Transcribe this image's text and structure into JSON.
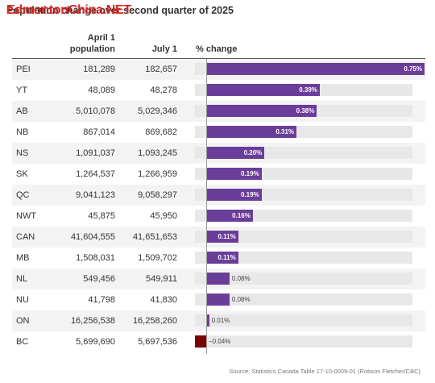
{
  "header": {
    "title": "Population change over second quarter of 2025",
    "watermark": "EdmontonChina.NET"
  },
  "columns": {
    "april": "April 1\npopulation",
    "july": "July 1",
    "pct": "% change"
  },
  "colors": {
    "positive": "#6a3d9a",
    "negative": "#7a0000",
    "label_inside": "#ffffff",
    "label_outside": "#444444"
  },
  "chart_data": {
    "type": "table",
    "title": "Population change over second quarter of 2025",
    "columns": [
      "",
      "April 1 population",
      "July 1",
      "% change"
    ],
    "rows": [
      {
        "prov": "PEI",
        "apr": "181,289",
        "jul": "182,657",
        "pct": 0.75,
        "label": "0.75%"
      },
      {
        "prov": "YT",
        "apr": "48,089",
        "jul": "48,278",
        "pct": 0.39,
        "label": "0.39%"
      },
      {
        "prov": "AB",
        "apr": "5,010,078",
        "jul": "5,029,346",
        "pct": 0.38,
        "label": "0.38%"
      },
      {
        "prov": "NB",
        "apr": "867,014",
        "jul": "869,682",
        "pct": 0.31,
        "label": "0.31%"
      },
      {
        "prov": "NS",
        "apr": "1,091,037",
        "jul": "1,093,245",
        "pct": 0.2,
        "label": "0.20%"
      },
      {
        "prov": "SK",
        "apr": "1,264,537",
        "jul": "1,266,959",
        "pct": 0.19,
        "label": "0.19%"
      },
      {
        "prov": "QC",
        "apr": "9,041,123",
        "jul": "9,058,297",
        "pct": 0.19,
        "label": "0.19%"
      },
      {
        "prov": "NWT",
        "apr": "45,875",
        "jul": "45,950",
        "pct": 0.16,
        "label": "0.16%"
      },
      {
        "prov": "CAN",
        "apr": "41,604,555",
        "jul": "41,651,653",
        "pct": 0.11,
        "label": "0.11%"
      },
      {
        "prov": "MB",
        "apr": "1,508,031",
        "jul": "1,509,702",
        "pct": 0.11,
        "label": "0.11%"
      },
      {
        "prov": "NL",
        "apr": "549,456",
        "jul": "549,911",
        "pct": 0.08,
        "label": "0.08%"
      },
      {
        "prov": "NU",
        "apr": "41,798",
        "jul": "41,830",
        "pct": 0.08,
        "label": "0.08%"
      },
      {
        "prov": "ON",
        "apr": "16,256,538",
        "jul": "16,258,260",
        "pct": 0.01,
        "label": "0.01%"
      },
      {
        "prov": "BC",
        "apr": "5,699,690",
        "jul": "5,697,536",
        "pct": -0.04,
        "label": "−0.04%"
      }
    ],
    "xlim": [
      -0.1,
      0.75
    ]
  },
  "footer": {
    "source": "Source: Statistics Canada Table 17-10-0009-01 (Robson Fletcher/CBC)"
  }
}
